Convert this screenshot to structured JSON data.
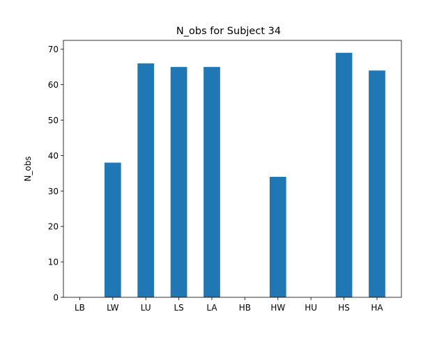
{
  "chart_data": {
    "type": "bar",
    "title": "N_obs for Subject 34",
    "xlabel": "",
    "ylabel": "N_obs",
    "categories": [
      "LB",
      "LW",
      "LU",
      "LS",
      "LA",
      "HB",
      "HW",
      "HU",
      "HS",
      "HA"
    ],
    "values": [
      0,
      38,
      66,
      65,
      65,
      0,
      34,
      0,
      69,
      64
    ],
    "ylim": [
      0,
      72.5
    ],
    "yticks": [
      0,
      10,
      20,
      30,
      40,
      50,
      60,
      70
    ],
    "grid": false,
    "legend": "none",
    "bar_color": "#1f77b4"
  }
}
